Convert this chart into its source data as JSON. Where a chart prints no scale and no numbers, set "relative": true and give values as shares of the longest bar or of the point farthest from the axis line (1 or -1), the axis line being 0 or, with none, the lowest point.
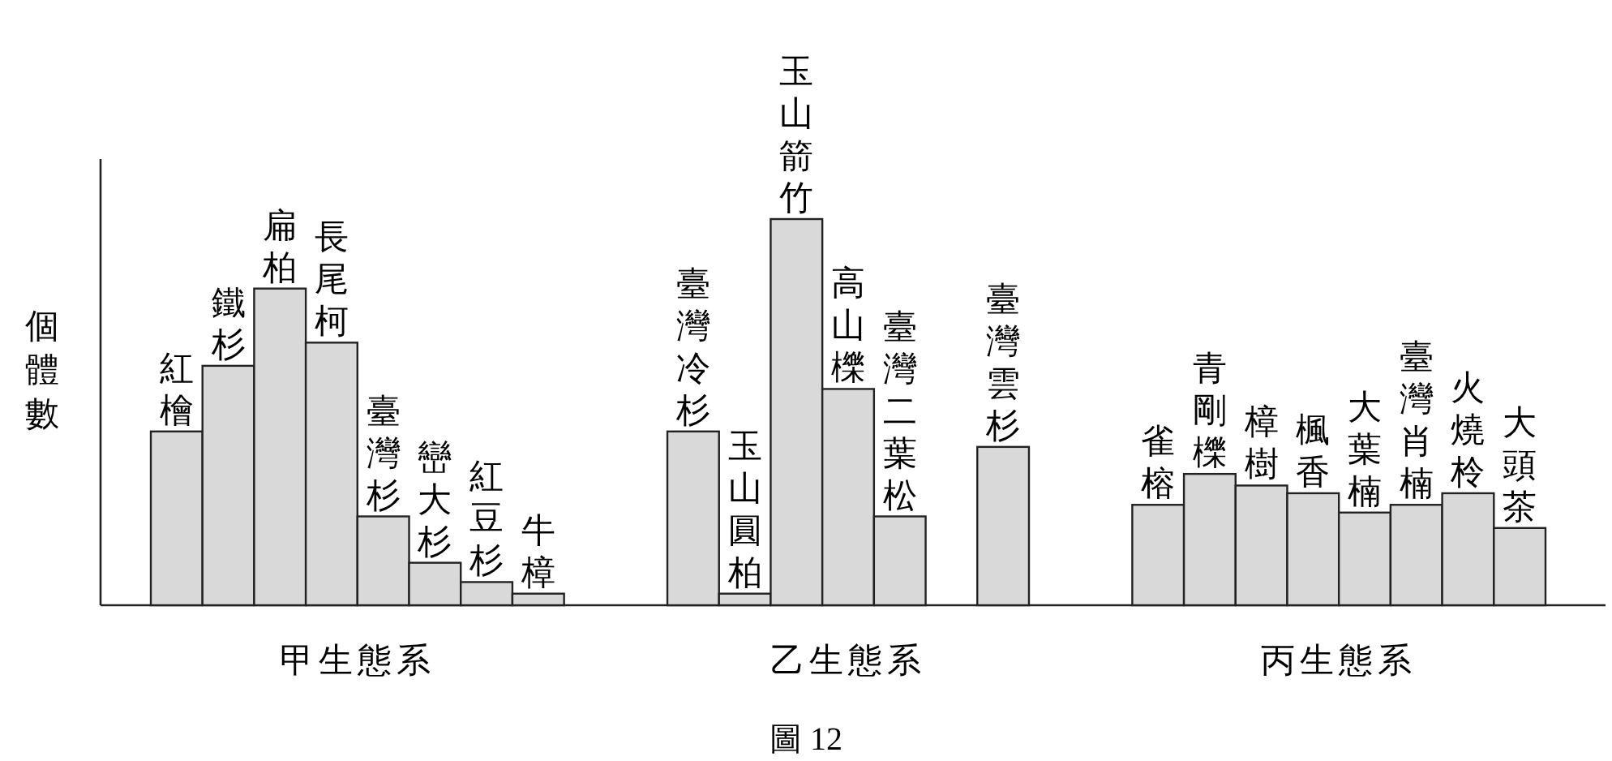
{
  "chart_data": {
    "type": "bar",
    "relative": true,
    "ylabel": "個體數",
    "color": "#d9d9d9",
    "categories": [
      "紅檜",
      "鐵杉",
      "扁柏",
      "長尾柯",
      "臺灣杉",
      "巒大杉",
      "紅豆杉",
      "牛樟",
      null,
      null,
      "臺灣冷杉",
      "玉山圓柏",
      "玉山箭竹",
      "高山櫟",
      "臺灣二葉松",
      null,
      "臺灣雲杉",
      null,
      null,
      "雀榕",
      "青剛櫟",
      "樟樹",
      "楓香",
      "大葉楠",
      "臺灣肖楠",
      "火燒柃",
      "大頭茶"
    ],
    "values": [
      0.45,
      0.62,
      0.82,
      0.68,
      0.23,
      0.11,
      0.06,
      0.03,
      null,
      null,
      0.45,
      0.03,
      1,
      0.56,
      0.23,
      null,
      0.41,
      null,
      null,
      0.26,
      0.34,
      0.31,
      0.29,
      0.24,
      0.26,
      0.29,
      0.2
    ],
    "annotations": [
      "甲生態系",
      "乙生態系",
      "丙生態系",
      "圖 12"
    ]
  }
}
